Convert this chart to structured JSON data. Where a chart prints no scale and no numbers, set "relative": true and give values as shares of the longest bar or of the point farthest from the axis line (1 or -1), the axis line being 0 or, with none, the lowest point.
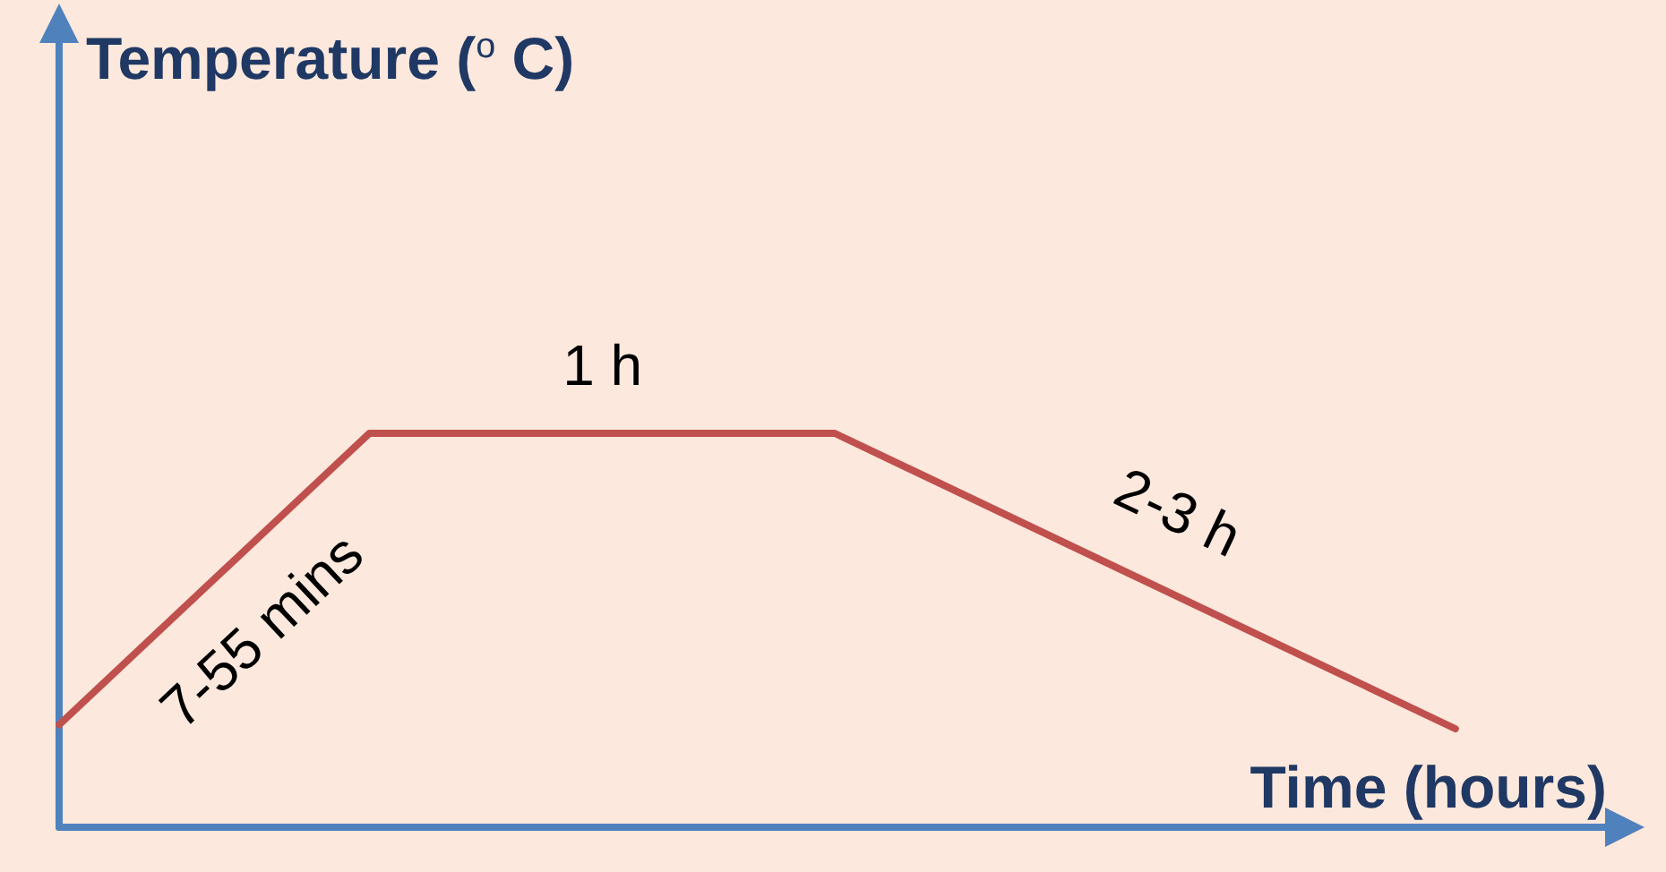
{
  "chart_data": {
    "type": "line",
    "relative": true,
    "xlabel": "Time (hours)",
    "categories": [
      null,
      null,
      null,
      null,
      null,
      null,
      null,
      null,
      null,
      null,
      null
    ],
    "series": [
      {
        "color": "#c0504d",
        "values": [
          0.26,
          null,
          1,
          null,
          null,
          1,
          null,
          null,
          null,
          0.25,
          null
        ]
      }
    ],
    "annotations": [
      "Temperature ($^{o}$ C)",
      "7-55 mins",
      "1 h",
      "2-3 h"
    ],
    "grid": false,
    "marker": "none",
    "line_style": "solid"
  }
}
